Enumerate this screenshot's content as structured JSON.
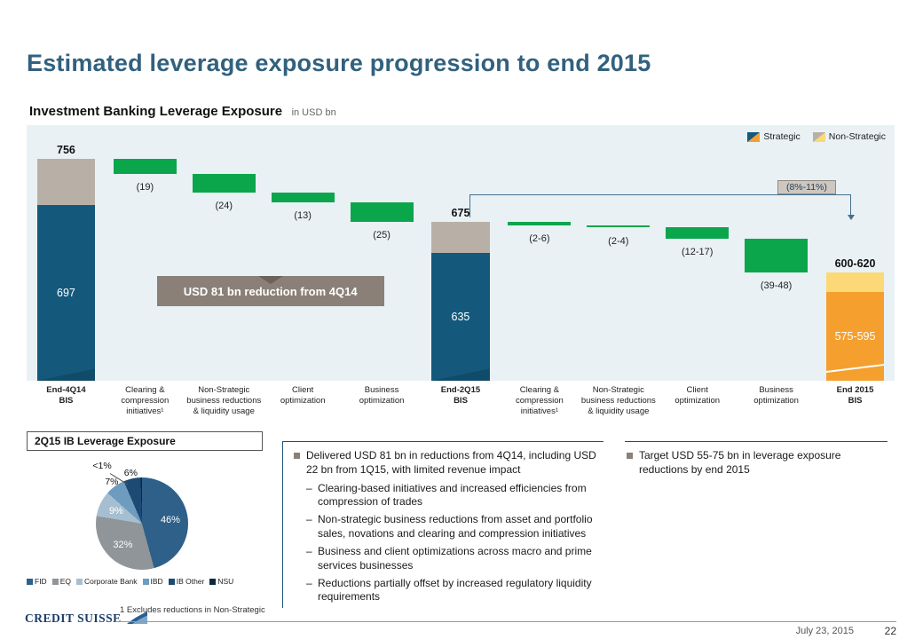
{
  "slide": {
    "title": "Estimated leverage exposure progression to end 2015",
    "chart_heading": "Investment Banking Leverage Exposure",
    "chart_heading_suffix": "in USD bn",
    "footnote": "1 Excludes reductions in Non-Strategic",
    "footer_date": "July 23, 2015",
    "page_number": "22",
    "logo_text": "CREDIT SUISSE"
  },
  "legend": {
    "strategic": "Strategic",
    "non_strategic": "Non-Strategic"
  },
  "annotations": {
    "reduction_box": "USD 81 bn reduction from 4Q14",
    "percent_range": "(8%-11%)"
  },
  "colors": {
    "strategic": "#14597c",
    "non_strategic": "#b8b0a7",
    "delta_green": "#0ba64b",
    "target_strategic": "#f5a02e",
    "target_non_strategic": "#fbd977",
    "accent_navy": "#1f4e79"
  },
  "chart_data": [
    {
      "type": "waterfall",
      "title": "Investment Banking Leverage Exposure (USD bn)",
      "axis_min": 470,
      "axis_max": 800,
      "legend": [
        "Strategic",
        "Non-Strategic"
      ],
      "columns": [
        {
          "kind": "total",
          "axis_label": "End-4Q14\nBIS",
          "total": 756,
          "strategic": 697,
          "non_strategic": 59,
          "total_label": "756",
          "inner_label": "697"
        },
        {
          "kind": "delta",
          "axis_label": "Clearing &\ncompression\ninitiatives¹",
          "from": 756,
          "to": 737,
          "delta_label": "(19)"
        },
        {
          "kind": "delta",
          "axis_label": "Non-Strategic\nbusiness reductions\n& liquidity usage",
          "from": 737,
          "to": 713,
          "delta_label": "(24)"
        },
        {
          "kind": "delta",
          "axis_label": "Client\noptimization",
          "from": 713,
          "to": 700,
          "delta_label": "(13)"
        },
        {
          "kind": "delta",
          "axis_label": "Business\noptimization",
          "from": 700,
          "to": 675,
          "delta_label": "(25)"
        },
        {
          "kind": "total",
          "axis_label": "End-2Q15\nBIS",
          "total": 675,
          "strategic": 635,
          "non_strategic": 40,
          "total_label": "675",
          "inner_label": "635"
        },
        {
          "kind": "delta",
          "axis_label": "Clearing &\ncompression\ninitiatives¹",
          "from": 675,
          "to": 671,
          "delta_label": "(2-6)"
        },
        {
          "kind": "delta",
          "axis_label": "Non-Strategic\nbusiness reductions\n& liquidity usage",
          "from": 671,
          "to": 668,
          "delta_label": "(2-4)"
        },
        {
          "kind": "delta",
          "axis_label": "Client\noptimization",
          "from": 668,
          "to": 653.5,
          "delta_label": "(12-17)"
        },
        {
          "kind": "delta",
          "axis_label": "Business\noptimization",
          "from": 653.5,
          "to": 610,
          "delta_label": "(39-48)"
        },
        {
          "kind": "total",
          "axis_label": "End 2015\nBIS",
          "total": 610,
          "strategic": 585,
          "non_strategic": 25,
          "total_label": "600-620",
          "inner_label": "575-595",
          "strategic_color": "#f5a02e",
          "non_strategic_color": "#fbd977",
          "target": true
        }
      ]
    },
    {
      "type": "pie",
      "title": "2Q15 IB Leverage Exposure",
      "slices": [
        {
          "label": "FID",
          "value": 46,
          "display": "46%",
          "color": "#2e6089"
        },
        {
          "label": "EQ",
          "value": 32,
          "display": "32%",
          "color": "#8f9598"
        },
        {
          "label": "Corporate Bank",
          "value": 9,
          "display": "9%",
          "color": "#a6bfd0"
        },
        {
          "label": "IBD",
          "value": 7,
          "display": "7%",
          "color": "#6d9cbf"
        },
        {
          "label": "IB Other",
          "value": 6,
          "display": "6%",
          "color": "#1d4a73"
        },
        {
          "label": "NSU",
          "value": 0.5,
          "display": "<1%",
          "color": "#10293f",
          "callout": true
        }
      ],
      "legend_position": "bottom"
    }
  ],
  "commentary": {
    "bullets": [
      {
        "text": "Delivered USD 81 bn in reductions from 4Q14, including USD 22 bn from 1Q15, with limited revenue impact",
        "sub": [
          "Clearing-based initiatives and increased efficiencies from compression of trades",
          "Non-strategic business reductions from asset and portfolio sales, novations and clearing and compression initiatives",
          "Business and client optimizations across macro and prime services businesses",
          "Reductions partially offset by increased regulatory liquidity requirements"
        ]
      }
    ]
  },
  "target": {
    "bullets": [
      {
        "text": "Target USD 55-75 bn in leverage exposure reductions by end 2015",
        "sub": []
      }
    ]
  }
}
